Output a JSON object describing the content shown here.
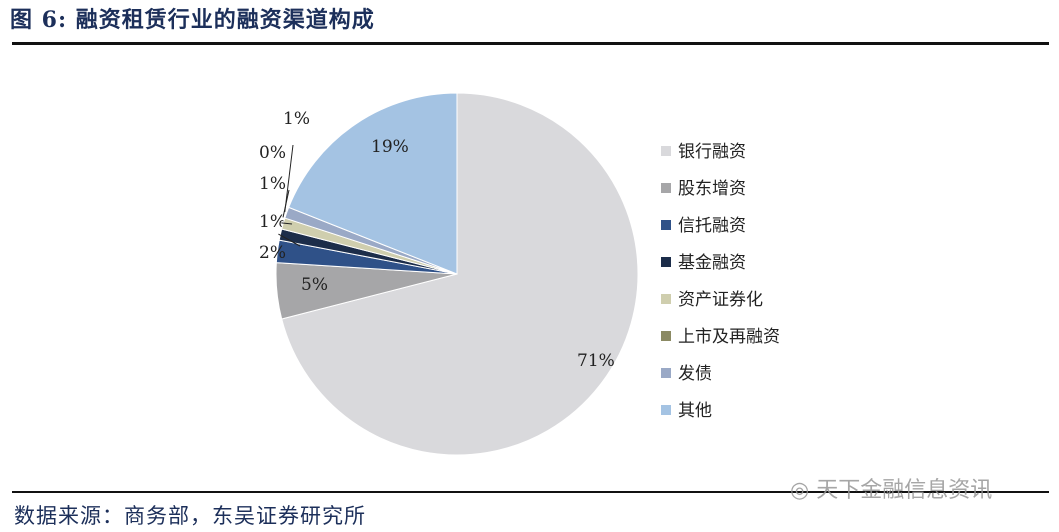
{
  "title": "图 6:  融资租赁行业的融资渠道构成",
  "source": "数据来源：商务部，东吴证券研究所",
  "watermark": "天下金融信息资讯",
  "chart_data": {
    "type": "pie",
    "categories": [
      "银行融资",
      "股东增资",
      "信托融资",
      "基金融资",
      "资产证券化",
      "上市及再融资",
      "发债",
      "其他"
    ],
    "values": [
      71,
      5,
      2,
      1,
      1,
      0,
      1,
      19
    ],
    "labels": [
      "71%",
      "5%",
      "2%",
      "1%",
      "1%",
      "0%",
      "1%",
      "19%"
    ],
    "colors": [
      "#d9d9dc",
      "#a6a6a8",
      "#2f5188",
      "#1c2d4a",
      "#cfceae",
      "#8b8a63",
      "#9aa9c6",
      "#a4c3e3"
    ],
    "legend_position": "right"
  }
}
